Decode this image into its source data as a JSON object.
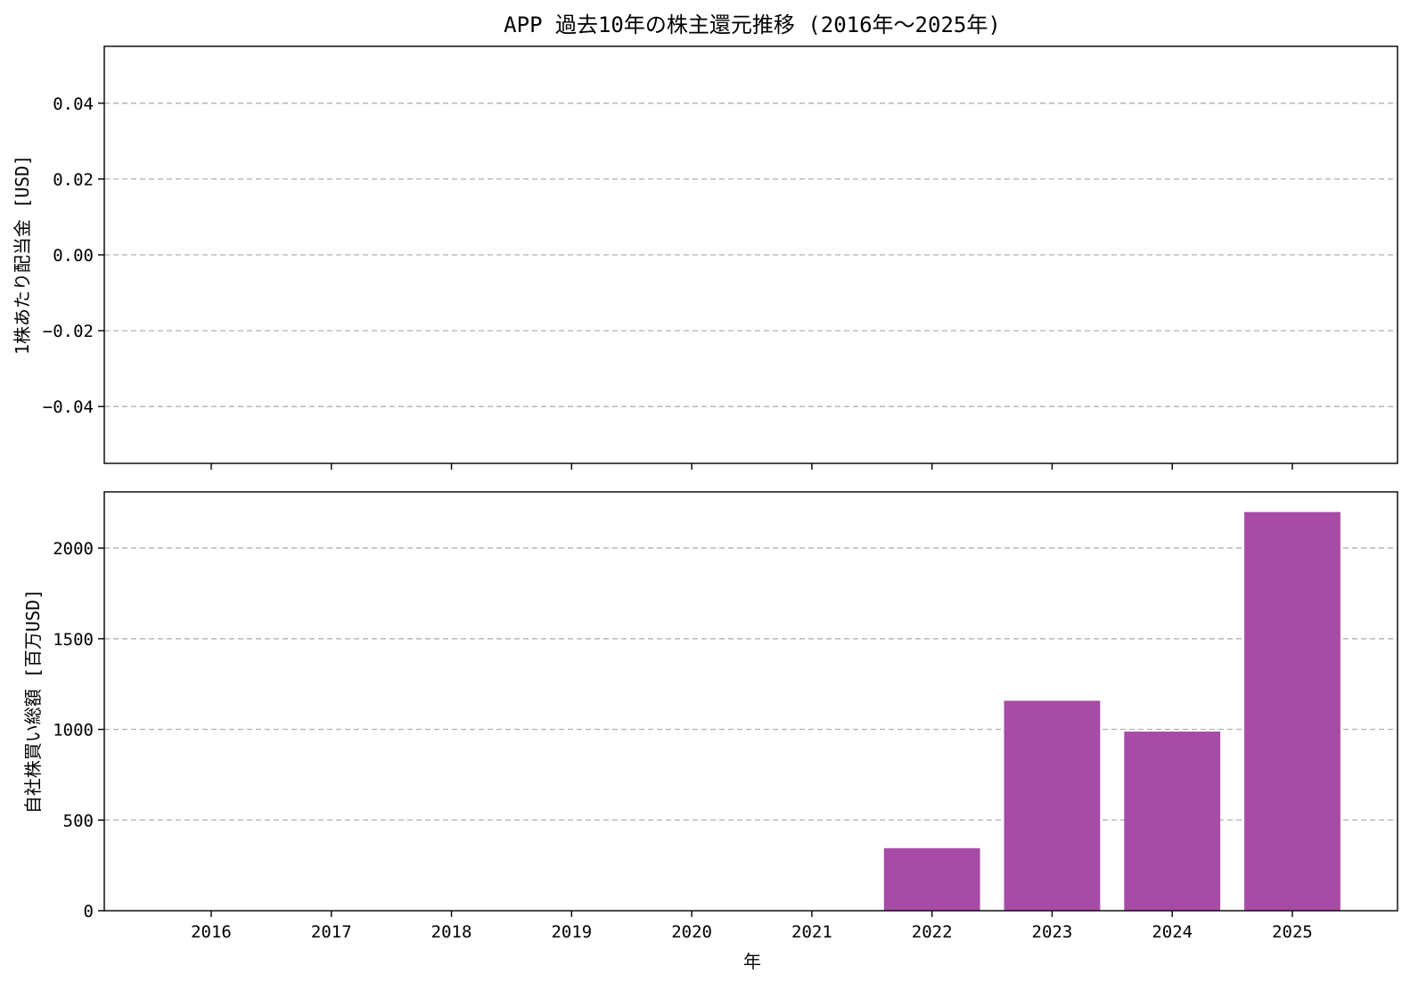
{
  "chart_data": {
    "type": "bar",
    "title": "APP 過去10年の株主還元推移 (2016年〜2025年)",
    "xlabel": "年",
    "categories": [
      "2016",
      "2017",
      "2018",
      "2019",
      "2020",
      "2021",
      "2022",
      "2023",
      "2024",
      "2025"
    ],
    "grid": "y-dashed",
    "panels": [
      {
        "ylabel": "1株あたり配当金 [USD]",
        "ylim": [
          -0.055,
          0.055
        ],
        "yticks": [
          -0.04,
          -0.02,
          0.0,
          0.02,
          0.04
        ],
        "ytick_labels": [
          "−0.04",
          "−0.02",
          "0.00",
          "0.02",
          "0.04"
        ],
        "values": [
          null,
          null,
          null,
          null,
          null,
          null,
          null,
          null,
          null,
          null
        ],
        "show_xtick_labels": false
      },
      {
        "ylabel": "自社株買い総額 [百万USD]",
        "ylim": [
          0,
          2310
        ],
        "yticks": [
          0,
          500,
          1000,
          1500,
          2000
        ],
        "ytick_labels": [
          "0",
          "500",
          "1000",
          "1500",
          "2000"
        ],
        "values": [
          0,
          0,
          0,
          0,
          0,
          0,
          345,
          1158,
          988,
          2199
        ],
        "color": "#a64ca6",
        "show_xtick_labels": true
      }
    ]
  }
}
